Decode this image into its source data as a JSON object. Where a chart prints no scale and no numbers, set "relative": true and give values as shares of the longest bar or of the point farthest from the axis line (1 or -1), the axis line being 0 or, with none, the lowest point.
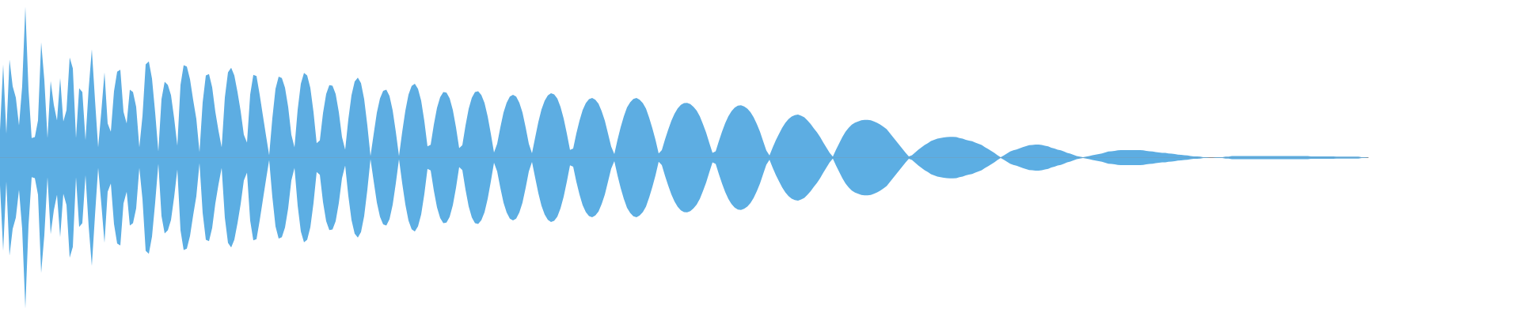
{
  "chart_data": {
    "type": "area",
    "relative": true,
    "categories": [
      null,
      null,
      null,
      null,
      null,
      null,
      null,
      null,
      null,
      null,
      null,
      null,
      null,
      null,
      null,
      null,
      null,
      null,
      null,
      null,
      null,
      null,
      null,
      null,
      null,
      null,
      null,
      null,
      null,
      null,
      null,
      null,
      null,
      null,
      null,
      null,
      null,
      null,
      null,
      null,
      null,
      null,
      null,
      null,
      null,
      null,
      null,
      null,
      null,
      null,
      null,
      null,
      null,
      null,
      null,
      null,
      null,
      null,
      null,
      null,
      null,
      null,
      null,
      null,
      null,
      null,
      null,
      null,
      null,
      null,
      null,
      null,
      null,
      null,
      null,
      null,
      null,
      null,
      null,
      null,
      null,
      null,
      null,
      null,
      null,
      null,
      null,
      null,
      null,
      null,
      null,
      null,
      null,
      null,
      null,
      null,
      null,
      null,
      null,
      null,
      null,
      null,
      null,
      null,
      null,
      null,
      null,
      null,
      null,
      null,
      null,
      null,
      null,
      null,
      null,
      null,
      null,
      null,
      null,
      null,
      null,
      null,
      null,
      null,
      null,
      null,
      null,
      null,
      null,
      null,
      null,
      null,
      null,
      null,
      null,
      null,
      null,
      null,
      null,
      null,
      null,
      null,
      null,
      null,
      null,
      null,
      null,
      null,
      null,
      null,
      null,
      null,
      null,
      null,
      null,
      null,
      null,
      null,
      null,
      null,
      null,
      null,
      null,
      null,
      null,
      null,
      null,
      null,
      null,
      null,
      null,
      null,
      null,
      null,
      null,
      null,
      null,
      null,
      null,
      null,
      null,
      null,
      null,
      null,
      null,
      null,
      null,
      null,
      null,
      null,
      null,
      null,
      null,
      null,
      null,
      null,
      null,
      null,
      null,
      null,
      null,
      null,
      null,
      null,
      null,
      null,
      null,
      null,
      null,
      null,
      null,
      null,
      null,
      null,
      null,
      null,
      null,
      null,
      null,
      null,
      null,
      null,
      null,
      null,
      null,
      null,
      null,
      null,
      null,
      null,
      null,
      null,
      null,
      null,
      null,
      null,
      null,
      null,
      null,
      null,
      null,
      null,
      null,
      null,
      null,
      null,
      null,
      null,
      null,
      null,
      null,
      null,
      null,
      null,
      null,
      null,
      null,
      null,
      null,
      null,
      null,
      null,
      null,
      null,
      null,
      null,
      null,
      null,
      null,
      null,
      null,
      null,
      null,
      null,
      null,
      null,
      null,
      null,
      null,
      null,
      null,
      null,
      null,
      null,
      null,
      null,
      null,
      null,
      null,
      null,
      null,
      null,
      null,
      null,
      null,
      null,
      null,
      null,
      null,
      null,
      null,
      null,
      null,
      null,
      null,
      null,
      null,
      null,
      null,
      null,
      null,
      null,
      null,
      null,
      null,
      null,
      null,
      null,
      null,
      null,
      null,
      null,
      null,
      null,
      null,
      null,
      null,
      null,
      null,
      null,
      null,
      null,
      null,
      null,
      null,
      null,
      null,
      null,
      null,
      null,
      null,
      null,
      null,
      null,
      null,
      null,
      null,
      null,
      null,
      null,
      null,
      null,
      null,
      null,
      null,
      null,
      null,
      null,
      null,
      null,
      null,
      null,
      null,
      null,
      null,
      null,
      null,
      null,
      null,
      null,
      null,
      null,
      null,
      null,
      null,
      null,
      null,
      null,
      null,
      null,
      null,
      null,
      null,
      null,
      null,
      null,
      null,
      null,
      null,
      null,
      null,
      null,
      null,
      null,
      null,
      null,
      null,
      null,
      null,
      null,
      null,
      null,
      null,
      null,
      null,
      null,
      null,
      null,
      null,
      null,
      null,
      null,
      null,
      null,
      null,
      null,
      null,
      null,
      null,
      null,
      null,
      null,
      null,
      null,
      null,
      null,
      null,
      null,
      null,
      null,
      null,
      null,
      null
    ],
    "series": [
      {
        "color": "#5dade2",
        "values": [
          0.184,
          0.618,
          0.158,
          0.65,
          0.472,
          0.398,
          0.214,
          0.472,
          1,
          0.45,
          0.13,
          0.136,
          0.246,
          0.764,
          0.514,
          0.13,
          0.508,
          0.35,
          0.246,
          0.528,
          0.24,
          0.314,
          0.664,
          0.592,
          0.13,
          0.46,
          0.434,
          0.116,
          0.456,
          0.718,
          0.382,
          0.068,
          0.308,
          0.566,
          0.226,
          0.172,
          0.44,
          0.57,
          0.582,
          0.304,
          0.226,
          0.45,
          0.434,
          0.336,
          0.068,
          0.278,
          0.618,
          0.638,
          0.524,
          0.298,
          0.04,
          0.388,
          0.502,
          0.482,
          0.414,
          0.26,
          0.078,
          0.482,
          0.612,
          0.604,
          0.52,
          0.382,
          0.256,
          0.036,
          0.366,
          0.544,
          0.554,
          0.466,
          0.304,
          0.178,
          0.068,
          0.398,
          0.566,
          0.596,
          0.544,
          0.434,
          0.308,
          0.152,
          0.1,
          0.418,
          0.548,
          0.54,
          0.418,
          0.282,
          0.146,
          0.016,
          0.26,
          0.455,
          0.537,
          0.528,
          0.463,
          0.336,
          0.152,
          0.068,
          0.318,
          0.49,
          0.561,
          0.545,
          0.462,
          0.302,
          0.096,
          0.114,
          0.295,
          0.422,
          0.48,
          0.477,
          0.422,
          0.301,
          0.136,
          0.053,
          0.254,
          0.413,
          0.504,
          0.53,
          0.493,
          0.387,
          0.215,
          0.01,
          0.156,
          0.297,
          0.393,
          0.443,
          0.45,
          0.409,
          0.313,
          0.17,
          0.01,
          0.169,
          0.31,
          0.418,
          0.475,
          0.489,
          0.456,
          0.377,
          0.242,
          0.075,
          0.085,
          0.219,
          0.33,
          0.401,
          0.434,
          0.431,
          0.393,
          0.316,
          0.2,
          0.063,
          0.082,
          0.212,
          0.323,
          0.396,
          0.434,
          0.44,
          0.415,
          0.362,
          0.274,
          0.159,
          0.034,
          0.091,
          0.2,
          0.298,
          0.364,
          0.404,
          0.416,
          0.404,
          0.364,
          0.298,
          0.2,
          0.091,
          0.029,
          0.134,
          0.235,
          0.32,
          0.377,
          0.412,
          0.427,
          0.419,
          0.391,
          0.337,
          0.259,
          0.16,
          0.051,
          0.06,
          0.16,
          0.245,
          0.316,
          0.361,
          0.387,
          0.395,
          0.383,
          0.357,
          0.308,
          0.245,
          0.16,
          0.073,
          0.024,
          0.118,
          0.201,
          0.273,
          0.332,
          0.367,
          0.389,
          0.395,
          0.384,
          0.361,
          0.324,
          0.264,
          0.195,
          0.118,
          0.027,
          0.05,
          0.12,
          0.185,
          0.243,
          0.291,
          0.326,
          0.349,
          0.361,
          0.363,
          0.355,
          0.337,
          0.311,
          0.273,
          0.221,
          0.165,
          0.097,
          0.031,
          0.042,
          0.109,
          0.171,
          0.228,
          0.274,
          0.308,
          0.331,
          0.344,
          0.347,
          0.339,
          0.324,
          0.301,
          0.267,
          0.223,
          0.171,
          0.109,
          0.047,
          0.014,
          0.067,
          0.115,
          0.157,
          0.197,
          0.231,
          0.255,
          0.272,
          0.282,
          0.285,
          0.278,
          0.267,
          0.246,
          0.222,
          0.194,
          0.168,
          0.136,
          0.1,
          0.066,
          0.032,
          0.006,
          0.052,
          0.094,
          0.136,
          0.172,
          0.198,
          0.218,
          0.232,
          0.24,
          0.248,
          0.25,
          0.25,
          0.248,
          0.24,
          0.23,
          0.218,
          0.204,
          0.188,
          0.162,
          0.136,
          0.11,
          0.084,
          0.058,
          0.032,
          0.008,
          0.016,
          0.034,
          0.052,
          0.068,
          0.084,
          0.096,
          0.11,
          0.118,
          0.126,
          0.13,
          0.134,
          0.136,
          0.138,
          0.138,
          0.136,
          0.13,
          0.126,
          0.118,
          0.112,
          0.108,
          0.1,
          0.092,
          0.084,
          0.07,
          0.058,
          0.044,
          0.032,
          0.016,
          0.003,
          0.014,
          0.028,
          0.04,
          0.048,
          0.054,
          0.062,
          0.07,
          0.076,
          0.082,
          0.084,
          0.086,
          0.086,
          0.084,
          0.078,
          0.074,
          0.066,
          0.06,
          0.052,
          0.048,
          0.04,
          0.032,
          0.026,
          0.018,
          0.01,
          0.006,
          0.003,
          0.006,
          0.01,
          0.016,
          0.02,
          0.024,
          0.028,
          0.034,
          0.04,
          0.042,
          0.044,
          0.048,
          0.05,
          0.05,
          0.05,
          0.05,
          0.05,
          0.05,
          0.05,
          0.048,
          0.044,
          0.042,
          0.04,
          0.036,
          0.034,
          0.032,
          0.032,
          0.028,
          0.026,
          0.024,
          0.02,
          0.018,
          0.016,
          0.014,
          0.01,
          0.008,
          0.008,
          0.006,
          0.003,
          0.003,
          0,
          0,
          0.003,
          0.003,
          0.003,
          0.006,
          0.006,
          0.01,
          0.01,
          0.01,
          0.01,
          0.01,
          0.01,
          0.01,
          0.01,
          0.01,
          0.01,
          0.01,
          0.01,
          0.01,
          0.01,
          0.01,
          0.01,
          0.01,
          0.01,
          0.01,
          0.01,
          0.01,
          0.01,
          0.01,
          0.01,
          0.01,
          0.008,
          0.008,
          0.008,
          0.008,
          0.008,
          0.008,
          0.008,
          0.008,
          0.006,
          0.006,
          0.006,
          0.006,
          0.006,
          0.006,
          0.006,
          0.006,
          0.003,
          0.003,
          0
        ]
      },
      {
        "color": "#5caee3",
        "values": [
          -0.184,
          -0.618,
          -0.158,
          -0.65,
          -0.472,
          -0.398,
          -0.214,
          -0.472,
          -1,
          -0.45,
          -0.13,
          -0.136,
          -0.246,
          -0.764,
          -0.514,
          -0.13,
          -0.508,
          -0.35,
          -0.246,
          -0.528,
          -0.24,
          -0.314,
          -0.664,
          -0.592,
          -0.13,
          -0.46,
          -0.434,
          -0.116,
          -0.456,
          -0.718,
          -0.382,
          -0.068,
          -0.308,
          -0.566,
          -0.226,
          -0.172,
          -0.44,
          -0.57,
          -0.582,
          -0.304,
          -0.226,
          -0.45,
          -0.434,
          -0.336,
          -0.068,
          -0.278,
          -0.618,
          -0.638,
          -0.524,
          -0.298,
          -0.04,
          -0.388,
          -0.502,
          -0.482,
          -0.414,
          -0.26,
          -0.078,
          -0.482,
          -0.612,
          -0.604,
          -0.52,
          -0.382,
          -0.256,
          -0.036,
          -0.366,
          -0.544,
          -0.554,
          -0.466,
          -0.304,
          -0.178,
          -0.068,
          -0.398,
          -0.566,
          -0.596,
          -0.544,
          -0.434,
          -0.308,
          -0.152,
          -0.1,
          -0.418,
          -0.548,
          -0.54,
          -0.418,
          -0.282,
          -0.146,
          -0.016,
          -0.26,
          -0.455,
          -0.537,
          -0.528,
          -0.463,
          -0.336,
          -0.152,
          -0.068,
          -0.318,
          -0.49,
          -0.561,
          -0.545,
          -0.462,
          -0.302,
          -0.096,
          -0.114,
          -0.295,
          -0.422,
          -0.48,
          -0.477,
          -0.422,
          -0.301,
          -0.136,
          -0.053,
          -0.254,
          -0.413,
          -0.504,
          -0.53,
          -0.493,
          -0.387,
          -0.215,
          -0.01,
          -0.156,
          -0.297,
          -0.393,
          -0.443,
          -0.45,
          -0.409,
          -0.313,
          -0.17,
          -0.01,
          -0.169,
          -0.31,
          -0.418,
          -0.475,
          -0.489,
          -0.456,
          -0.377,
          -0.242,
          -0.075,
          -0.085,
          -0.219,
          -0.33,
          -0.401,
          -0.434,
          -0.431,
          -0.393,
          -0.316,
          -0.2,
          -0.063,
          -0.082,
          -0.212,
          -0.323,
          -0.396,
          -0.434,
          -0.44,
          -0.415,
          -0.362,
          -0.274,
          -0.159,
          -0.034,
          -0.091,
          -0.2,
          -0.298,
          -0.364,
          -0.404,
          -0.416,
          -0.404,
          -0.364,
          -0.298,
          -0.2,
          -0.091,
          -0.029,
          -0.134,
          -0.235,
          -0.32,
          -0.377,
          -0.412,
          -0.427,
          -0.419,
          -0.391,
          -0.337,
          -0.259,
          -0.16,
          -0.051,
          -0.06,
          -0.16,
          -0.245,
          -0.316,
          -0.361,
          -0.387,
          -0.395,
          -0.383,
          -0.357,
          -0.308,
          -0.245,
          -0.16,
          -0.073,
          -0.024,
          -0.118,
          -0.201,
          -0.273,
          -0.332,
          -0.367,
          -0.389,
          -0.395,
          -0.384,
          -0.361,
          -0.324,
          -0.264,
          -0.195,
          -0.118,
          -0.027,
          -0.05,
          -0.12,
          -0.185,
          -0.243,
          -0.291,
          -0.326,
          -0.349,
          -0.361,
          -0.363,
          -0.355,
          -0.337,
          -0.311,
          -0.273,
          -0.221,
          -0.165,
          -0.097,
          -0.031,
          -0.042,
          -0.109,
          -0.171,
          -0.228,
          -0.274,
          -0.308,
          -0.331,
          -0.344,
          -0.347,
          -0.339,
          -0.324,
          -0.301,
          -0.267,
          -0.223,
          -0.171,
          -0.109,
          -0.047,
          -0.014,
          -0.067,
          -0.115,
          -0.157,
          -0.197,
          -0.231,
          -0.255,
          -0.272,
          -0.282,
          -0.285,
          -0.278,
          -0.267,
          -0.246,
          -0.222,
          -0.194,
          -0.168,
          -0.136,
          -0.1,
          -0.066,
          -0.032,
          -0.006,
          -0.052,
          -0.094,
          -0.136,
          -0.172,
          -0.198,
          -0.218,
          -0.232,
          -0.24,
          -0.248,
          -0.25,
          -0.25,
          -0.248,
          -0.24,
          -0.23,
          -0.218,
          -0.204,
          -0.188,
          -0.162,
          -0.136,
          -0.11,
          -0.084,
          -0.058,
          -0.032,
          -0.008,
          -0.016,
          -0.034,
          -0.052,
          -0.068,
          -0.084,
          -0.096,
          -0.11,
          -0.118,
          -0.126,
          -0.13,
          -0.134,
          -0.136,
          -0.138,
          -0.138,
          -0.136,
          -0.13,
          -0.126,
          -0.118,
          -0.112,
          -0.108,
          -0.1,
          -0.092,
          -0.084,
          -0.07,
          -0.058,
          -0.044,
          -0.032,
          -0.016,
          -0.003,
          -0.014,
          -0.028,
          -0.04,
          -0.048,
          -0.054,
          -0.062,
          -0.07,
          -0.076,
          -0.082,
          -0.084,
          -0.086,
          -0.086,
          -0.084,
          -0.078,
          -0.074,
          -0.066,
          -0.06,
          -0.052,
          -0.048,
          -0.04,
          -0.032,
          -0.026,
          -0.018,
          -0.01,
          -0.006,
          -0.003,
          -0.006,
          -0.01,
          -0.016,
          -0.02,
          -0.024,
          -0.028,
          -0.034,
          -0.04,
          -0.042,
          -0.044,
          -0.048,
          -0.05,
          -0.05,
          -0.05,
          -0.05,
          -0.05,
          -0.05,
          -0.05,
          -0.048,
          -0.044,
          -0.042,
          -0.04,
          -0.036,
          -0.034,
          -0.032,
          -0.032,
          -0.028,
          -0.026,
          -0.024,
          -0.02,
          -0.018,
          -0.016,
          -0.014,
          -0.01,
          -0.008,
          -0.008,
          -0.006,
          -0.003,
          -0.003,
          0,
          0,
          -0.003,
          -0.003,
          -0.003,
          -0.006,
          -0.006,
          -0.01,
          -0.01,
          -0.01,
          -0.01,
          -0.01,
          -0.01,
          -0.01,
          -0.01,
          -0.01,
          -0.01,
          -0.01,
          -0.01,
          -0.01,
          -0.01,
          -0.01,
          -0.01,
          -0.01,
          -0.01,
          -0.01,
          -0.01,
          -0.01,
          -0.01,
          -0.01,
          -0.01,
          -0.01,
          -0.008,
          -0.008,
          -0.008,
          -0.008,
          -0.008,
          -0.008,
          -0.008,
          -0.008,
          -0.006,
          -0.006,
          -0.006,
          -0.006,
          -0.006,
          -0.006,
          -0.006,
          -0.006,
          -0.003,
          -0.003,
          0
        ]
      }
    ]
  }
}
